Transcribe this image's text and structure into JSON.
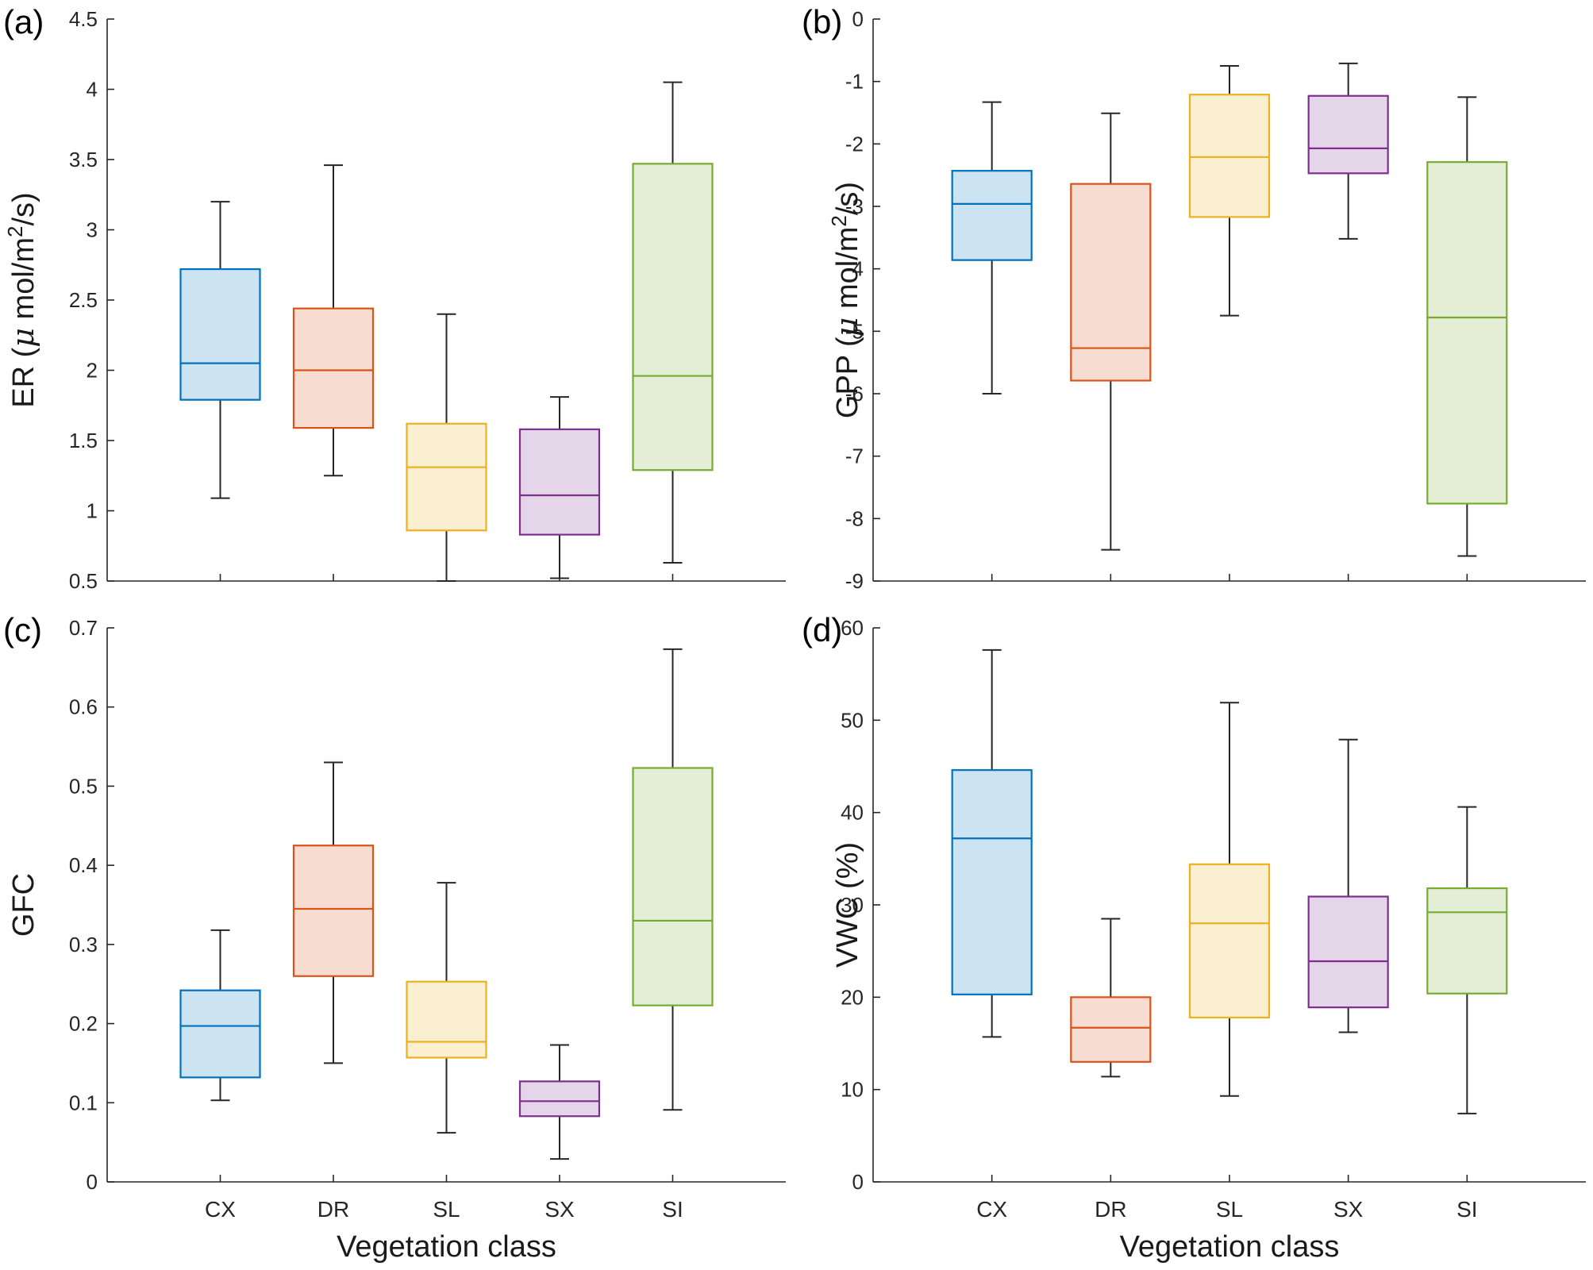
{
  "colors": {
    "CX": "#0072BD",
    "DR": "#D95319",
    "SL": "#EDB120",
    "SX": "#7E2F8E",
    "SI": "#77AC30"
  },
  "chart_data": [
    {
      "panel": "(a)",
      "type": "box",
      "categories": [
        "CX",
        "DR",
        "SL",
        "SX",
        "SI"
      ],
      "xlabel": "",
      "ylabel": "ER (μ mol/m²/s)",
      "ylabel_parts": {
        "pre": "ER (",
        "mu": "μ",
        "mid": " mol/m",
        "sup": "2",
        "post": "/s)"
      },
      "ylim": [
        0.5,
        4.5
      ],
      "yticks": [
        0.5,
        1,
        1.5,
        2,
        2.5,
        3,
        3.5,
        4,
        4.5
      ],
      "ytick_labels": [
        "0.5",
        "1",
        "1.5",
        "2",
        "2.5",
        "3",
        "3.5",
        "4",
        "4.5"
      ],
      "boxes": [
        {
          "category": "CX",
          "min": 1.09,
          "q1": 1.79,
          "median": 2.05,
          "q3": 2.72,
          "max": 3.2
        },
        {
          "category": "DR",
          "min": 1.25,
          "q1": 1.59,
          "median": 2.0,
          "q3": 2.44,
          "max": 3.46
        },
        {
          "category": "SL",
          "min": 0.5,
          "q1": 0.86,
          "median": 1.31,
          "q3": 1.62,
          "max": 2.4
        },
        {
          "category": "SX",
          "min": 0.52,
          "q1": 0.83,
          "median": 1.11,
          "q3": 1.58,
          "max": 1.81
        },
        {
          "category": "SI",
          "min": 0.63,
          "q1": 1.29,
          "median": 1.96,
          "q3": 3.47,
          "max": 4.05
        }
      ]
    },
    {
      "panel": "(b)",
      "type": "box",
      "categories": [
        "CX",
        "DR",
        "SL",
        "SX",
        "SI"
      ],
      "xlabel": "",
      "ylabel": "GPP (μ mol/m²/s)",
      "ylabel_parts": {
        "pre": "GPP (",
        "mu": "μ",
        "mid": " mol/m",
        "sup": "2",
        "post": "/s)"
      },
      "ylim": [
        -9,
        0
      ],
      "yticks": [
        -9,
        -8,
        -7,
        -6,
        -5,
        -4,
        -3,
        -2,
        -1,
        0
      ],
      "ytick_labels": [
        "-9",
        "-8",
        "-7",
        "-6",
        "-5",
        "-4",
        "-3",
        "-2",
        "-1",
        "0"
      ],
      "boxes": [
        {
          "category": "CX",
          "min": -6.0,
          "q1": -3.86,
          "median": -2.96,
          "q3": -2.43,
          "max": -1.33
        },
        {
          "category": "DR",
          "min": -8.5,
          "q1": -5.79,
          "median": -5.27,
          "q3": -2.64,
          "max": -1.51
        },
        {
          "category": "SL",
          "min": -4.75,
          "q1": -3.17,
          "median": -2.21,
          "q3": -1.21,
          "max": -0.75
        },
        {
          "category": "SX",
          "min": -3.52,
          "q1": -2.47,
          "median": -2.07,
          "q3": -1.23,
          "max": -0.71
        },
        {
          "category": "SI",
          "min": -8.6,
          "q1": -7.76,
          "median": -4.78,
          "q3": -2.29,
          "max": -1.25
        }
      ]
    },
    {
      "panel": "(c)",
      "type": "box",
      "categories": [
        "CX",
        "DR",
        "SL",
        "SX",
        "SI"
      ],
      "xlabel": "Vegetation class",
      "ylabel": "GFC",
      "ylim": [
        0,
        0.7
      ],
      "yticks": [
        0,
        0.1,
        0.2,
        0.3,
        0.4,
        0.5,
        0.6,
        0.7
      ],
      "ytick_labels": [
        "0",
        "0.1",
        "0.2",
        "0.3",
        "0.4",
        "0.5",
        "0.6",
        "0.7"
      ],
      "boxes": [
        {
          "category": "CX",
          "min": 0.103,
          "q1": 0.132,
          "median": 0.197,
          "q3": 0.242,
          "max": 0.318
        },
        {
          "category": "DR",
          "min": 0.15,
          "q1": 0.26,
          "median": 0.345,
          "q3": 0.425,
          "max": 0.53
        },
        {
          "category": "SL",
          "min": 0.062,
          "q1": 0.157,
          "median": 0.177,
          "q3": 0.253,
          "max": 0.378
        },
        {
          "category": "SX",
          "min": 0.029,
          "q1": 0.083,
          "median": 0.102,
          "q3": 0.127,
          "max": 0.173
        },
        {
          "category": "SI",
          "min": 0.091,
          "q1": 0.223,
          "median": 0.33,
          "q3": 0.523,
          "max": 0.673
        }
      ]
    },
    {
      "panel": "(d)",
      "type": "box",
      "categories": [
        "CX",
        "DR",
        "SL",
        "SX",
        "SI"
      ],
      "xlabel": "Vegetation class",
      "ylabel": "VWC (%)",
      "ylim": [
        0,
        60
      ],
      "yticks": [
        0,
        10,
        20,
        30,
        40,
        50,
        60
      ],
      "ytick_labels": [
        "0",
        "10",
        "20",
        "30",
        "40",
        "50",
        "60"
      ],
      "boxes": [
        {
          "category": "CX",
          "min": 15.7,
          "q1": 20.3,
          "median": 37.2,
          "q3": 44.6,
          "max": 57.6
        },
        {
          "category": "DR",
          "min": 11.4,
          "q1": 13.0,
          "median": 16.7,
          "q3": 20.0,
          "max": 28.5
        },
        {
          "category": "SL",
          "min": 9.3,
          "q1": 17.8,
          "median": 28.0,
          "q3": 34.4,
          "max": 51.9
        },
        {
          "category": "SX",
          "min": 16.2,
          "q1": 18.9,
          "median": 23.9,
          "q3": 30.9,
          "max": 47.9
        },
        {
          "category": "SI",
          "min": 7.4,
          "q1": 20.4,
          "median": 29.2,
          "q3": 31.8,
          "max": 40.6
        }
      ]
    }
  ]
}
